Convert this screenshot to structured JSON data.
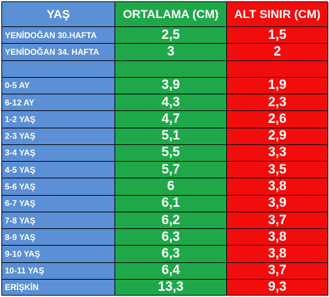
{
  "colors": {
    "age_column": "#5b8fd6",
    "average_column": "#1fa84a",
    "minimum_column": "#f20d0d",
    "text": "#ffffff",
    "border": "#000000"
  },
  "header": {
    "age": "YAŞ",
    "average": "ORTALAMA (CM)",
    "minimum": "ALT SINIR (CM)"
  },
  "rows": [
    {
      "age": "YENİDOĞAN 30.HAFTA",
      "average": "2,5",
      "minimum": "1,5"
    },
    {
      "age": "YENİDOĞAN 34. HAFTA",
      "average": "3",
      "minimum": "2"
    },
    {
      "age": "",
      "average": "",
      "minimum": ""
    },
    {
      "age": "0-5 AY",
      "average": "3,9",
      "minimum": "1,9"
    },
    {
      "age": "6-12 AY",
      "average": "4,3",
      "minimum": "2,3"
    },
    {
      "age": "1-2 YAŞ",
      "average": "4,7",
      "minimum": "2,6"
    },
    {
      "age": "2-3 YAŞ",
      "average": "5,1",
      "minimum": "2,9"
    },
    {
      "age": "3-4 YAŞ",
      "average": "5,5",
      "minimum": "3,3"
    },
    {
      "age": "4-5 YAŞ",
      "average": "5,7",
      "minimum": "3,5"
    },
    {
      "age": "5-6 YAŞ",
      "average": "6",
      "minimum": "3,8"
    },
    {
      "age": "6-7 YAŞ",
      "average": "6,1",
      "minimum": "3,9"
    },
    {
      "age": "7-8 YAŞ",
      "average": "6,2",
      "minimum": "3,7"
    },
    {
      "age": "8-9 YAŞ",
      "average": "6,3",
      "minimum": "3,8"
    },
    {
      "age": "9-10 YAŞ",
      "average": "6,3",
      "minimum": "3,8"
    },
    {
      "age": "10-11 YAŞ",
      "average": "6,4",
      "minimum": "3,7"
    },
    {
      "age": "ERİŞKİN",
      "average": "13,3",
      "minimum": "9,3"
    }
  ]
}
